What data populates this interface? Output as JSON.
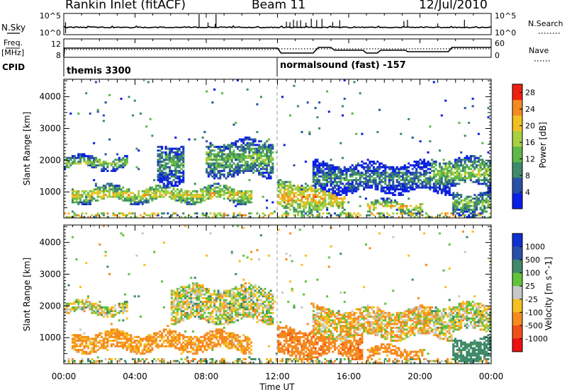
{
  "header": {
    "radar": "Rankin Inlet (fitACF)",
    "beam": "Beam 11",
    "date": "12/Jul/2010"
  },
  "noise_panel": {
    "left_label": "N.Sky",
    "right_label": "N.Search",
    "left_ticks": [
      "10^5",
      "10^0"
    ],
    "right_ticks": [
      "10^5",
      "10^0"
    ]
  },
  "freq_panel": {
    "left_label_1": "Freq.",
    "left_label_2": "[MHz]",
    "left_ticks": [
      "12",
      "8"
    ],
    "right_label": "Nave",
    "right_ticks": [
      "60",
      "0"
    ]
  },
  "cpid": {
    "label": "CPID",
    "segments": [
      "themis 3300",
      "normalsound (fast) -157"
    ]
  },
  "colors": {
    "power_scale": [
      "#0a1ee6",
      "#2a4fa8",
      "#3f8a6a",
      "#5fb84a",
      "#a8d040",
      "#f0c020",
      "#f58a20",
      "#ee2010"
    ],
    "velocity_scale": [
      "#ee1010",
      "#f05018",
      "#f58a20",
      "#f5c020",
      "#c8c8c8",
      "#62c23a",
      "#3f8a6a",
      "#2a4fa8",
      "#1030d0"
    ]
  },
  "chart_data": [
    {
      "type": "heatmap",
      "title": "Power",
      "ylabel": "Slant Range [km]",
      "xlabel": "Time UT",
      "x_ticks": [
        "00:00",
        "04:00",
        "08:00",
        "12:00",
        "16:00",
        "20:00",
        "00:00"
      ],
      "y_ticks": [
        "1000",
        "2000",
        "3000",
        "4000"
      ],
      "ylim": [
        180,
        4550
      ],
      "colorbar_label": "Power [dB]",
      "colorbar_ticks": [
        "4",
        "8",
        "12",
        "16",
        "20",
        "24",
        "28"
      ],
      "colorbar_range": [
        0,
        30
      ],
      "features": [
        {
          "start_h": 0.0,
          "end_h": 3.6,
          "range_km": [
            1750,
            2100
          ],
          "value": 16
        },
        {
          "start_h": 0.4,
          "end_h": 10.6,
          "range_km": [
            700,
            1150
          ],
          "value": 20
        },
        {
          "start_h": 5.2,
          "end_h": 6.8,
          "range_km": [
            1300,
            2500
          ],
          "value": 12
        },
        {
          "start_h": 8.0,
          "end_h": 11.8,
          "range_km": [
            1500,
            2600
          ],
          "value": 14
        },
        {
          "start_h": 12.0,
          "end_h": 15.8,
          "range_km": [
            400,
            1300
          ],
          "value": 22
        },
        {
          "start_h": 14.0,
          "end_h": 21.8,
          "range_km": [
            1000,
            1900
          ],
          "value": 10
        },
        {
          "start_h": 17.0,
          "end_h": 20.2,
          "range_km": [
            400,
            700
          ],
          "value": 22
        },
        {
          "start_h": 20.6,
          "end_h": 24.0,
          "range_km": [
            1200,
            2050
          ],
          "value": 16
        },
        {
          "start_h": 21.8,
          "end_h": 24.0,
          "range_km": [
            300,
            1000
          ],
          "value": 14
        }
      ]
    },
    {
      "type": "heatmap",
      "title": "Velocity",
      "ylabel": "Slant Range [km]",
      "xlabel": "Time UT",
      "x_ticks": [
        "00:00",
        "04:00",
        "08:00",
        "12:00",
        "16:00",
        "20:00",
        "00:00"
      ],
      "y_ticks": [
        "1000",
        "2000",
        "3000",
        "4000"
      ],
      "ylim": [
        180,
        4550
      ],
      "colorbar_label": "Velocity [m s^-1]",
      "colorbar_ticks": [
        "1000",
        "500",
        "100",
        "25",
        "-25",
        "-100",
        "-500",
        "-1000"
      ],
      "features": [
        {
          "start_h": 0.0,
          "end_h": 3.6,
          "range_km": [
            1750,
            2100
          ],
          "value": 0
        },
        {
          "start_h": 0.4,
          "end_h": 10.6,
          "range_km": [
            600,
            1150
          ],
          "value": -150
        },
        {
          "start_h": 6.0,
          "end_h": 11.8,
          "range_km": [
            1500,
            2600
          ],
          "value": 0
        },
        {
          "start_h": 12.0,
          "end_h": 16.8,
          "range_km": [
            400,
            1300
          ],
          "value": -400
        },
        {
          "start_h": 14.0,
          "end_h": 21.8,
          "range_km": [
            1000,
            1900
          ],
          "value": -60
        },
        {
          "start_h": 17.0,
          "end_h": 20.2,
          "range_km": [
            400,
            700
          ],
          "value": -200
        },
        {
          "start_h": 20.6,
          "end_h": 24.0,
          "range_km": [
            1200,
            2050
          ],
          "value": 0
        },
        {
          "start_h": 21.8,
          "end_h": 24.0,
          "range_km": [
            300,
            1000
          ],
          "value": 300
        }
      ]
    }
  ]
}
